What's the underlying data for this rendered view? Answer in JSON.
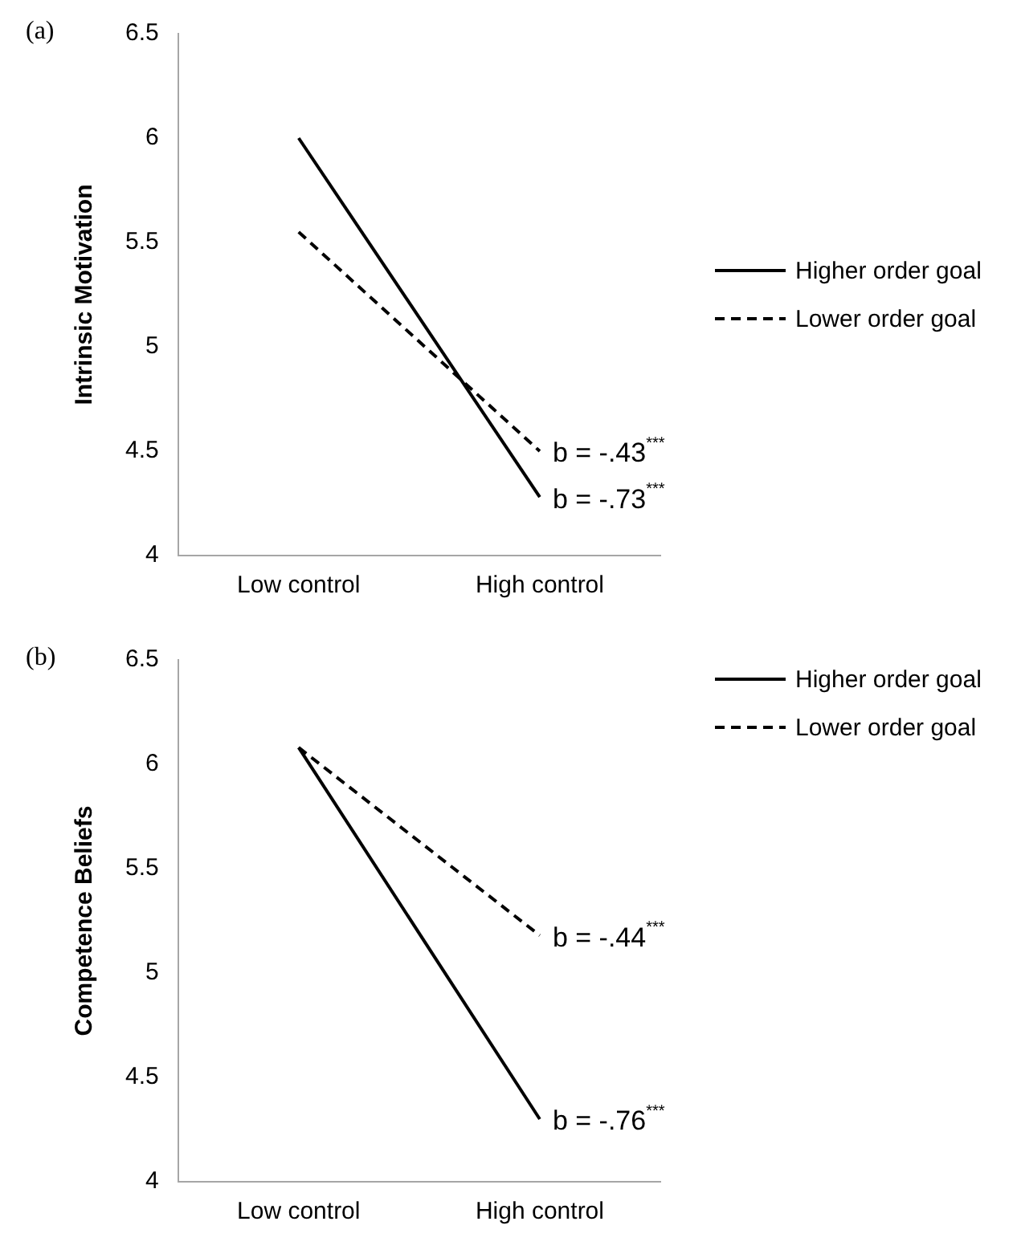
{
  "chart_data": [
    {
      "type": "line",
      "ylabel": "Intrinsic Motivation",
      "categories": [
        "Low control",
        "High control"
      ],
      "series": [
        {
          "name": "Higher order goal",
          "color": "#000000",
          "line_style": "solid",
          "values": [
            6.0,
            4.28
          ]
        },
        {
          "name": "Lower order goal",
          "color": "#000000",
          "line_style": "dashed",
          "values": [
            5.55,
            4.5
          ]
        }
      ],
      "ylim": [
        4,
        6.5
      ],
      "yticks": [
        4,
        4.5,
        5,
        5.5,
        6,
        6.5
      ],
      "grid": false,
      "legend": "right",
      "marker": "none",
      "annotations": [
        "(a)",
        {
          "text": "b = -.43$^{***}$",
          "x": "High control",
          "y": 4.5
        },
        {
          "text": "b = -.73$^{***}$",
          "x": "High control",
          "y": 4.28
        }
      ]
    },
    {
      "type": "line",
      "ylabel": "Competence Beliefs",
      "categories": [
        "Low control",
        "High control"
      ],
      "series": [
        {
          "name": "Higher order goal",
          "color": "#000000",
          "line_style": "solid",
          "values": [
            6.08,
            4.3
          ]
        },
        {
          "name": "Lower order goal",
          "color": "#000000",
          "line_style": "dashed",
          "values": [
            6.08,
            5.18
          ]
        }
      ],
      "ylim": [
        4,
        6.5
      ],
      "yticks": [
        4,
        4.5,
        5,
        5.5,
        6,
        6.5
      ],
      "grid": false,
      "legend": "top right",
      "marker": "none",
      "annotations": [
        "(b)",
        {
          "text": "b = -.44$^{***}$",
          "x": "High control",
          "y": 5.18
        },
        {
          "text": "b = -.76$^{***}$",
          "x": "High control",
          "y": 4.3
        }
      ]
    }
  ]
}
